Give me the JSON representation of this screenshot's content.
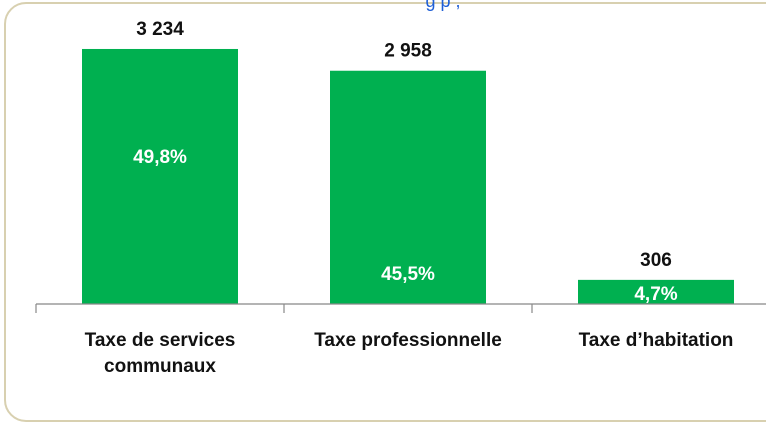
{
  "header": {
    "fragment": "g  p      ,"
  },
  "colors": {
    "bar": "#00b050",
    "frame_border": "#d8d0b0",
    "header_text": "#1f5fd6"
  },
  "chart_data": {
    "type": "bar",
    "categories": [
      [
        "Taxe de services",
        "communaux"
      ],
      [
        "Taxe professionnelle"
      ],
      [
        "Taxe d’habitation"
      ]
    ],
    "values": [
      3234,
      2958,
      306
    ],
    "value_labels": [
      "3 234",
      "2 958",
      "306"
    ],
    "percent_labels": [
      "49,8%",
      "45,5%",
      "4,7%"
    ],
    "title": "",
    "xlabel": "",
    "ylabel": "",
    "ylim": [
      0,
      3500
    ],
    "grid": false,
    "legend": "none"
  }
}
